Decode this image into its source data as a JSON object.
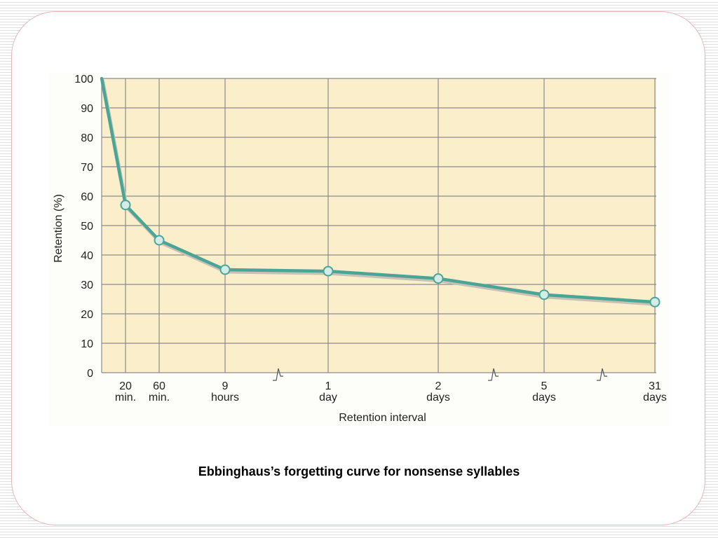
{
  "caption": "Ebbinghaus’s forgetting curve for nonsense syllables",
  "colors": {
    "plot_background": "#faeecb",
    "grid": "#8c8c8c",
    "curve": "#4aa597",
    "curve_shadow": "#c9c2b4",
    "marker": "#d3ece8"
  },
  "chart_data": {
    "type": "line",
    "title": "",
    "xlabel": "Retention interval",
    "ylabel": "Retention (%)",
    "ylim": [
      0,
      100
    ],
    "yticks": [
      0,
      10,
      20,
      30,
      40,
      50,
      60,
      70,
      80,
      90,
      100
    ],
    "x_tick_labels": [
      [
        "20",
        "min."
      ],
      [
        "60",
        "min."
      ],
      [
        "9",
        "hours"
      ],
      [
        "1",
        "day"
      ],
      [
        "2",
        "days"
      ],
      [
        "5",
        "days"
      ],
      [
        "31",
        "days"
      ]
    ],
    "x_axis_breaks": [
      "between 9 hours and 1 day",
      "between 2 days and 5 days",
      "between 5 days and 31 days"
    ],
    "grid": true,
    "series": [
      {
        "x": [
          "0",
          "20 min.",
          "60 min.",
          "9 hours",
          "1 day",
          "2 days",
          "5 days",
          "31 days"
        ],
        "values": [
          100,
          57,
          45,
          35,
          34.5,
          32,
          26.5,
          24
        ],
        "marker_at_start": false
      }
    ]
  }
}
